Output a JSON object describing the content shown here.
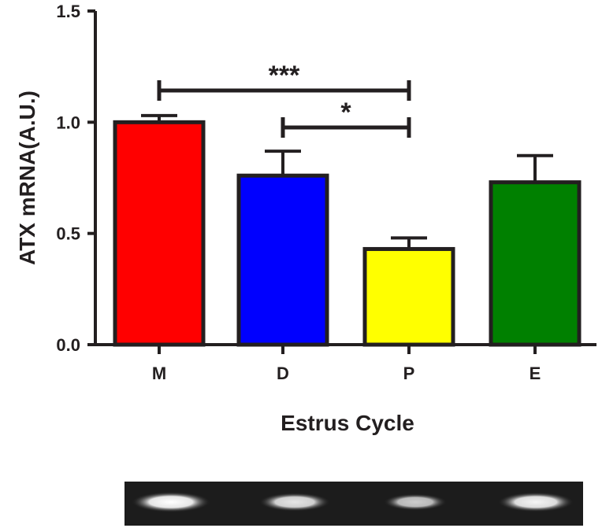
{
  "chart_data": {
    "type": "bar",
    "categories": [
      "M",
      "D",
      "P",
      "E"
    ],
    "values": [
      1.0,
      0.76,
      0.43,
      0.73
    ],
    "errors": [
      0.03,
      0.11,
      0.05,
      0.12
    ],
    "colors": [
      "#ff0000",
      "#0000ff",
      "#ffff00",
      "#008000"
    ],
    "xlabel": "Estrus Cycle",
    "ylabel": "ATX mRNA(A.U.)",
    "ylim": [
      0,
      1.5
    ],
    "yticks": [
      "0.0",
      "0.5",
      "1.0",
      "1.5"
    ],
    "significance": [
      {
        "from": "M",
        "to": "P",
        "label": "***"
      },
      {
        "from": "D",
        "to": "P",
        "label": "*"
      }
    ],
    "gel_bands": [
      {
        "lane": "M",
        "intensity": 1.0
      },
      {
        "lane": "D",
        "intensity": 0.75
      },
      {
        "lane": "P",
        "intensity": 0.5
      },
      {
        "lane": "E",
        "intensity": 0.9
      }
    ],
    "grid": false,
    "legend": "none"
  }
}
